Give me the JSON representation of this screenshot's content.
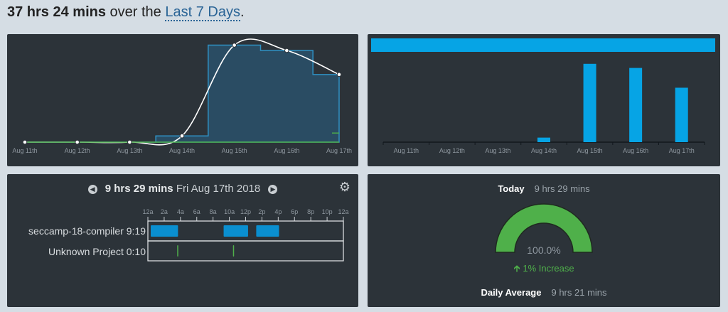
{
  "headline": {
    "total": "37 hrs 24 mins",
    "middle": " over the ",
    "range": "Last 7 Days",
    "end": "."
  },
  "colors": {
    "panel_bg": "#2c3339",
    "accent_blue": "#06a4e5",
    "step_line": "#2f91c4",
    "area_fill": "#2a4c63",
    "green": "#4fb04a"
  },
  "chart_data": [
    {
      "type": "area",
      "categories": [
        "Aug 11th",
        "Aug 12th",
        "Aug 13th",
        "Aug 14th",
        "Aug 15th",
        "Aug 16th",
        "Aug 17th"
      ],
      "series": [
        {
          "values": [
            0,
            0,
            0,
            0.7,
            10.9,
            10.3,
            7.6
          ]
        },
        {
          "values": [
            0,
            0,
            0,
            0,
            0,
            0,
            0.17
          ]
        }
      ],
      "ylim": [
        0,
        11.5
      ],
      "grid": false
    },
    {
      "type": "bar",
      "categories": [
        "Aug 11th",
        "Aug 12th",
        "Aug 13th",
        "Aug 14th",
        "Aug 15th",
        "Aug 16th",
        "Aug 17th"
      ],
      "values": [
        0,
        0,
        0,
        0.55,
        9.5,
        9.0,
        6.6
      ],
      "ylim": [
        0,
        10
      ],
      "top_band": true
    },
    {
      "type": "timeline",
      "ticks": [
        "12a",
        "2a",
        "4a",
        "6a",
        "8a",
        "10a",
        "12p",
        "2p",
        "4p",
        "6p",
        "8p",
        "10p",
        "12a"
      ],
      "rows": [
        {
          "project": "seccamp-18-compiler",
          "time": "9:19",
          "color": "#0a8fd0",
          "blocks": [
            [
              0.35,
              3.7
            ],
            [
              9.3,
              12.3
            ],
            [
              13.3,
              16.1
            ]
          ]
        },
        {
          "project": "Unknown Project",
          "time": "0:10",
          "color": "#4fb04a",
          "blocks": [
            [
              3.6,
              3.72
            ],
            [
              10.45,
              10.5
            ]
          ]
        }
      ]
    }
  ],
  "day": {
    "duration": "9 hrs 29 mins",
    "date": "Fri Aug 17th 2018",
    "prev_icon": "chevron-left-icon",
    "next_icon": "chevron-right-icon",
    "settings_icon": "gear-icon"
  },
  "summary": {
    "today_label": "Today",
    "today_value": "9 hrs 29 mins",
    "gauge_percent": 100,
    "percent_text": "100.0%",
    "increase_text": "1% Increase",
    "increase_icon": "arrow-up-icon",
    "avg_label": "Daily Average",
    "avg_value": "9 hrs 21 mins"
  }
}
